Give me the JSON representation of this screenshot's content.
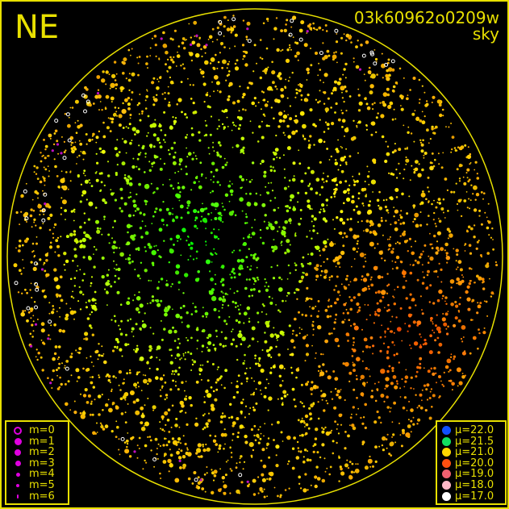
{
  "header": {
    "direction": "NE",
    "frame_id": "03k60962o0209w",
    "source": "sky"
  },
  "colors": {
    "frame": "#e8e000",
    "background": "#000000"
  },
  "magnitude_legend": [
    {
      "label": "m=0",
      "size": "ring"
    },
    {
      "label": "m=1"
    },
    {
      "label": "m=2"
    },
    {
      "label": "m=3"
    },
    {
      "label": "m=4"
    },
    {
      "label": "m=5"
    },
    {
      "label": "m=6"
    }
  ],
  "magnitude_symbol_color": "#e000e0",
  "sky_brightness_legend": [
    {
      "label": "μ=22.0",
      "color": "#1050ff"
    },
    {
      "label": "μ=21.5",
      "color": "#10e060"
    },
    {
      "label": "μ=21.0",
      "color": "#ffd800"
    },
    {
      "label": "μ=20.0",
      "color": "#ff5010"
    },
    {
      "label": "μ=19.0",
      "color": "#f06070"
    },
    {
      "label": "μ=18.0",
      "color": "#ffb8c8"
    },
    {
      "label": "μ=17.0",
      "color": "#ffffff"
    }
  ]
}
